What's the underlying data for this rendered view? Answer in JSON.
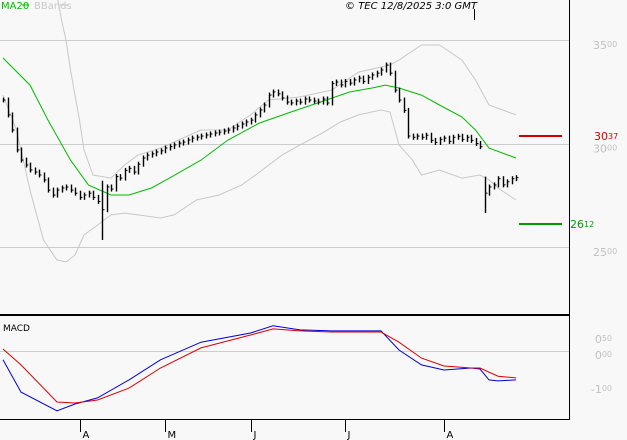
{
  "header": {
    "legend": [
      {
        "label": "MA20",
        "color": "#00bb00"
      },
      {
        "label": "BBands",
        "color": "#c8c8c8"
      }
    ],
    "copyright": "© TEC 12/8/2025 3:0 GMT"
  },
  "chart_data": [
    {
      "type": "ohlc",
      "panel": "price",
      "x_tick_labels": [
        {
          "bar": 17,
          "label": "A"
        },
        {
          "bar": 36,
          "label": "M"
        },
        {
          "bar": 55,
          "label": "J"
        },
        {
          "bar": 76,
          "label": "J"
        },
        {
          "bar": 98,
          "label": "A"
        }
      ],
      "ylim": [
        2200,
        3700
      ],
      "y_ticks": [
        {
          "value": 3500,
          "major": "35",
          "minor": "00"
        },
        {
          "value": 3000,
          "major": "30",
          "minor": "00"
        },
        {
          "value": 2500,
          "major": "25",
          "minor": "00"
        }
      ],
      "grid": true,
      "closes": [
        3210,
        3138,
        3065,
        2969,
        2920,
        2896,
        2872,
        2862,
        2848,
        2824,
        2775,
        2751,
        2775,
        2785,
        2790,
        2775,
        2760,
        2740,
        2751,
        2760,
        2740,
        2720,
        2680,
        2790,
        2780,
        2840,
        2833,
        2870,
        2880,
        2862,
        2900,
        2930,
        2944,
        2950,
        2959,
        2965,
        2978,
        2985,
        2993,
        3002,
        3007,
        3017,
        3026,
        3031,
        3036,
        3041,
        3046,
        3051,
        3055,
        3060,
        3065,
        3075,
        3084,
        3094,
        3104,
        3113,
        3138,
        3162,
        3186,
        3234,
        3249,
        3240,
        3220,
        3200,
        3196,
        3205,
        3200,
        3215,
        3210,
        3205,
        3200,
        3215,
        3196,
        3290,
        3297,
        3283,
        3300,
        3292,
        3307,
        3316,
        3300,
        3320,
        3331,
        3340,
        3355,
        3379,
        3340,
        3258,
        3210,
        3160,
        3036,
        3030,
        3036,
        3030,
        3040,
        3015,
        3005,
        3020,
        3026,
        3010,
        3030,
        3035,
        3020,
        3030,
        3015,
        3000,
        2985,
        2760,
        2790,
        2800,
        2830,
        2800,
        2815,
        2830,
        2835
      ],
      "extremes": {
        "22": [
          2820,
          2534
        ],
        "107": [
          2840,
          2664
        ]
      },
      "ma20": {
        "name": "MA20",
        "points": [
          [
            0,
            3413
          ],
          [
            6,
            3282
          ],
          [
            10,
            3113
          ],
          [
            15,
            2920
          ],
          [
            19,
            2799
          ],
          [
            24,
            2751
          ],
          [
            28,
            2751
          ],
          [
            33,
            2785
          ],
          [
            37,
            2833
          ],
          [
            44,
            2920
          ],
          [
            50,
            3017
          ],
          [
            57,
            3099
          ],
          [
            64,
            3152
          ],
          [
            70,
            3196
          ],
          [
            77,
            3249
          ],
          [
            82,
            3268
          ],
          [
            85,
            3282
          ],
          [
            88,
            3268
          ],
          [
            93,
            3234
          ],
          [
            97,
            3186
          ],
          [
            102,
            3128
          ],
          [
            105,
            3065
          ],
          [
            108,
            2978
          ],
          [
            114,
            2930
          ]
        ]
      },
      "bb_upper": {
        "name": "BBands",
        "points": [
          [
            12,
            3741
          ],
          [
            13,
            3596
          ],
          [
            14,
            3500
          ],
          [
            15,
            3355
          ],
          [
            17,
            3113
          ],
          [
            18,
            2969
          ],
          [
            20,
            2848
          ],
          [
            24,
            2833
          ],
          [
            27,
            2896
          ],
          [
            30,
            2944
          ],
          [
            35,
            2978
          ],
          [
            39,
            3017
          ],
          [
            44,
            3065
          ],
          [
            50,
            3065
          ],
          [
            55,
            3138
          ],
          [
            59,
            3210
          ],
          [
            66,
            3225
          ],
          [
            73,
            3258
          ],
          [
            79,
            3345
          ],
          [
            86,
            3379
          ],
          [
            88,
            3403
          ],
          [
            93,
            3476
          ],
          [
            97,
            3476
          ],
          [
            102,
            3403
          ],
          [
            105,
            3307
          ],
          [
            108,
            3186
          ],
          [
            114,
            3138
          ]
        ]
      },
      "bb_lower": {
        "name": "BBands",
        "points": [
          [
            0,
            3234
          ],
          [
            3,
            3065
          ],
          [
            6,
            2775
          ],
          [
            9,
            2534
          ],
          [
            12,
            2437
          ],
          [
            14,
            2428
          ],
          [
            16,
            2461
          ],
          [
            18,
            2558
          ],
          [
            21,
            2606
          ],
          [
            24,
            2655
          ],
          [
            27,
            2664
          ],
          [
            30,
            2655
          ],
          [
            35,
            2640
          ],
          [
            38,
            2655
          ],
          [
            43,
            2727
          ],
          [
            48,
            2751
          ],
          [
            53,
            2799
          ],
          [
            57,
            2862
          ],
          [
            62,
            2944
          ],
          [
            66,
            2993
          ],
          [
            71,
            3051
          ],
          [
            75,
            3104
          ],
          [
            79,
            3138
          ],
          [
            84,
            3162
          ],
          [
            86,
            3152
          ],
          [
            88,
            2993
          ],
          [
            91,
            2920
          ],
          [
            93,
            2848
          ],
          [
            97,
            2872
          ],
          [
            102,
            2833
          ],
          [
            106,
            2848
          ],
          [
            108,
            2824
          ],
          [
            110,
            2785
          ],
          [
            114,
            2727
          ]
        ]
      },
      "levels": [
        {
          "value": 3037,
          "label_major": "30",
          "label_minor": "37",
          "color": "#cc0000"
        },
        {
          "value": 2612,
          "label_major": "26",
          "label_minor": "12",
          "color": "#009900"
        }
      ]
    },
    {
      "type": "line",
      "panel": "macd",
      "title": "MACD",
      "ylim": [
        -2.0,
        1.0
      ],
      "y_ticks": [
        {
          "value": 0.5,
          "major": "0",
          "minor": "50"
        },
        {
          "value": 0.0,
          "major": "0",
          "minor": "00"
        },
        {
          "value": -1.0,
          "major": "-1",
          "minor": "00"
        }
      ],
      "series": [
        {
          "color": "#0000dd",
          "points": [
            [
              0,
              -0.26
            ],
            [
              4,
              -1.21
            ],
            [
              12,
              -1.76
            ],
            [
              16,
              -1.56
            ],
            [
              21,
              -1.38
            ],
            [
              28,
              -0.85
            ],
            [
              35,
              -0.26
            ],
            [
              44,
              0.26
            ],
            [
              55,
              0.53
            ],
            [
              60,
              0.74
            ],
            [
              66,
              0.62
            ],
            [
              73,
              0.59
            ],
            [
              84,
              0.59
            ],
            [
              88,
              0.03
            ],
            [
              93,
              -0.41
            ],
            [
              98,
              -0.56
            ],
            [
              104,
              -0.5
            ],
            [
              106,
              -0.53
            ],
            [
              108,
              -0.85
            ],
            [
              110,
              -0.88
            ],
            [
              114,
              -0.85
            ]
          ]
        },
        {
          "color": "#dd0000",
          "points": [
            [
              0,
              0.06
            ],
            [
              4,
              -0.41
            ],
            [
              12,
              -1.5
            ],
            [
              16,
              -1.53
            ],
            [
              21,
              -1.44
            ],
            [
              28,
              -1.09
            ],
            [
              35,
              -0.5
            ],
            [
              44,
              0.09
            ],
            [
              55,
              0.47
            ],
            [
              60,
              0.65
            ],
            [
              66,
              0.59
            ],
            [
              73,
              0.56
            ],
            [
              84,
              0.56
            ],
            [
              88,
              0.26
            ],
            [
              93,
              -0.21
            ],
            [
              98,
              -0.44
            ],
            [
              104,
              -0.5
            ],
            [
              106,
              -0.5
            ],
            [
              110,
              -0.74
            ],
            [
              114,
              -0.79
            ]
          ]
        }
      ]
    }
  ]
}
